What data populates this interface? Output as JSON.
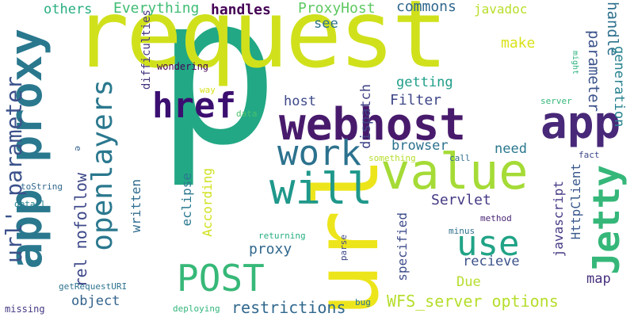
{
  "words": {
    "request": {
      "text": "request",
      "color": "#d0e11c"
    },
    "p": {
      "text": "p",
      "color": "#22a884"
    },
    "url": {
      "text": "url",
      "color": "#ede51b"
    },
    "webhost": {
      "text": "webhost",
      "color": "#481a6c"
    },
    "app_main": {
      "text": "app",
      "color": "#482878"
    },
    "app_proxy_vertical": {
      "text": "app proxy",
      "color": "#2a788e"
    },
    "value": {
      "text": "value",
      "color": "#a5db36"
    },
    "will": {
      "text": "will",
      "color": "#1f988b"
    },
    "href": {
      "text": "href",
      "color": "#3b0f70"
    },
    "work": {
      "text": "work",
      "color": "#2c728e"
    },
    "jetty": {
      "text": "Jetty",
      "color": "#35b779"
    },
    "openlayers": {
      "text": "openlayers",
      "color": "#2a788e"
    },
    "post": {
      "text": "POST",
      "color": "#37b878"
    },
    "use": {
      "text": "use",
      "color": "#20a386"
    },
    "url_parameter": {
      "text": "url' parameter",
      "color": "#3b528b"
    },
    "wfs_server_options": {
      "text": "WFS_server options",
      "color": "#b5de2b"
    },
    "restrictions": {
      "text": "restrictions",
      "color": "#31688e"
    },
    "rel_nofollow": {
      "text": "rel nofollow",
      "color": "#3e4989"
    },
    "handles": {
      "text": "handles",
      "color": "#440154"
    },
    "everything": {
      "text": "Everything",
      "color": "#3fbc73"
    },
    "others": {
      "text": "others",
      "color": "#27ad81"
    },
    "proxyhost": {
      "text": "ProxyHost",
      "color": "#5ec962"
    },
    "commons": {
      "text": "commons",
      "color": "#30688e"
    },
    "javadoc": {
      "text": "javadoc",
      "color": "#b8de29"
    },
    "handle": {
      "text": "handle",
      "color": "#2d708e"
    },
    "see": {
      "text": "see",
      "color": "#2c728e"
    },
    "make": {
      "text": "make",
      "color": "#d8e219"
    },
    "getting": {
      "text": "getting",
      "color": "#1f9e89"
    },
    "parameter_right": {
      "text": "parameter",
      "color": "#3b528b"
    },
    "generation": {
      "text": "generation",
      "color": "#26828e"
    },
    "host": {
      "text": "host",
      "color": "#3e4989"
    },
    "filter": {
      "text": "Filter",
      "color": "#3f4788"
    },
    "dispatch": {
      "text": "dispatch",
      "color": "#414487"
    },
    "browser": {
      "text": "browser",
      "color": "#2c728e"
    },
    "need": {
      "text": "need",
      "color": "#2a788e"
    },
    "servlet": {
      "text": "Servlet",
      "color": "#443983"
    },
    "proxy_small": {
      "text": "proxy",
      "color": "#31688e"
    },
    "recieve": {
      "text": "recieve",
      "color": "#3b528b"
    },
    "map": {
      "text": "map",
      "color": "#46307e"
    },
    "due": {
      "text": "Due",
      "color": "#b5de2b"
    },
    "object": {
      "text": "object",
      "color": "#33638d"
    },
    "according": {
      "text": "According",
      "color": "#d0e11c"
    },
    "eclipse": {
      "text": "eclipse",
      "color": "#2a788e"
    },
    "written": {
      "text": "written",
      "color": "#2f6c8e"
    },
    "specified": {
      "text": "specified",
      "color": "#3e4c8a"
    },
    "javascript": {
      "text": "javascript",
      "color": "#443983"
    },
    "httpclient": {
      "text": "HttpClient",
      "color": "#38588c"
    },
    "difficulties": {
      "text": "difficulties",
      "color": "#46337f"
    },
    "wondering": {
      "text": "wondering",
      "color": "#440154"
    },
    "might": {
      "text": "might",
      "color": "#2db27d"
    },
    "way": {
      "text": "way",
      "color": "#d8e219"
    },
    "data": {
      "text": "data",
      "color": "#4ac16d"
    },
    "server": {
      "text": "server",
      "color": "#35b779"
    },
    "fact": {
      "text": "fact",
      "color": "#3e4989"
    },
    "something": {
      "text": "something",
      "color": "#b5de2b"
    },
    "call": {
      "text": "call",
      "color": "#2e6e8e"
    },
    "e": {
      "text": "e",
      "color": "#34608d"
    },
    "tostring": {
      "text": "toString",
      "color": "#31688e"
    },
    "detail": {
      "text": "detail",
      "color": "#26828e"
    },
    "method": {
      "text": "method",
      "color": "#482475"
    },
    "minus": {
      "text": "minus",
      "color": "#2e6f8e"
    },
    "returning": {
      "text": "returning",
      "color": "#26ad81"
    },
    "parse": {
      "text": "parse",
      "color": "#3f4788"
    },
    "getrequesturi": {
      "text": "getRequestURI",
      "color": "#2c728e"
    },
    "missing": {
      "text": "missing",
      "color": "#443983"
    },
    "deploying": {
      "text": "deploying",
      "color": "#31b57b"
    },
    "bug": {
      "text": "bug",
      "color": "#2a788e"
    }
  }
}
